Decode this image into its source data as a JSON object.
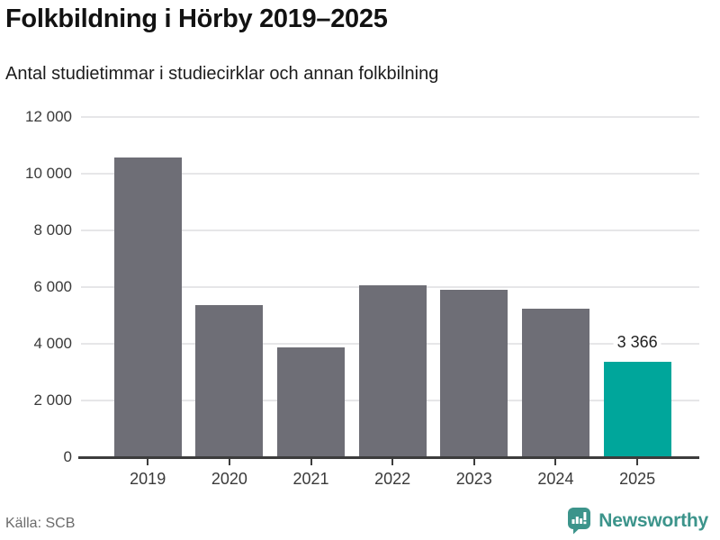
{
  "header": {
    "title": "Folkbildning i Hörby 2019–2025",
    "subtitle": "Antal studietimmar i studiecirklar och annan folkbilning"
  },
  "chart_data": {
    "type": "bar",
    "title": "Folkbildning i Hörby 2019–2025",
    "subtitle": "Antal studietimmar i studiecirklar och annan folkbilning",
    "categories": [
      "2019",
      "2020",
      "2021",
      "2022",
      "2023",
      "2024",
      "2025"
    ],
    "values": [
      10580,
      5380,
      3860,
      6050,
      5900,
      5250,
      3366
    ],
    "highlight_index": 6,
    "data_label": {
      "category": "2025",
      "text": "3 366"
    },
    "xlabel": "",
    "ylabel": "",
    "ylim": [
      0,
      12000
    ],
    "ytick_values": [
      0,
      2000,
      4000,
      6000,
      8000,
      10000,
      12000
    ],
    "ytick_labels": [
      "0",
      "2 000",
      "4 000",
      "6 000",
      "8 000",
      "10 000",
      "12 000"
    ],
    "grid": true,
    "legend": false,
    "bar_color": "#6e6e76",
    "highlight_color": "#00a69b"
  },
  "footer": {
    "source": "Källa: SCB",
    "logo_text": "Newsworthy",
    "logo_color": "#3c948b",
    "logo_icon": "newsworthy-speech-bubble-bar-chart-icon"
  }
}
